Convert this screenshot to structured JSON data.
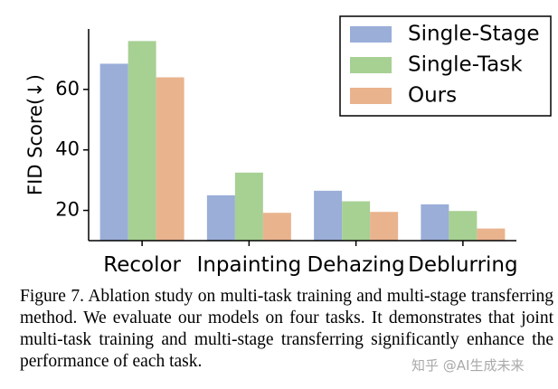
{
  "chart_data": {
    "type": "bar",
    "title": "",
    "xlabel": "",
    "ylabel": "FID Score(↓)",
    "categories": [
      "Recolor",
      "Inpainting",
      "Dehazing",
      "Deblurring"
    ],
    "series": [
      {
        "name": "Single-Stage",
        "values": [
          68.5,
          25.0,
          26.5,
          22.0
        ],
        "color": "#9aaed8"
      },
      {
        "name": "Single-Task",
        "values": [
          76.0,
          32.5,
          23.0,
          19.8
        ],
        "color": "#a7d093"
      },
      {
        "name": "Ours",
        "values": [
          64.0,
          19.2,
          19.5,
          14.0
        ],
        "color": "#e9b38e"
      }
    ],
    "ylim": [
      10,
      80
    ],
    "yticks": [
      20,
      40,
      60
    ],
    "grid": false,
    "legend_position": "top-right"
  },
  "caption": "Figure 7.  Ablation study on multi-task training and multi-stage transferring method.  We evaluate our models on four tasks.  It demonstrates that joint multi-task training and multi-stage transferring significantly enhance the performance of each task.",
  "watermark": "知乎 @AI生成未来"
}
